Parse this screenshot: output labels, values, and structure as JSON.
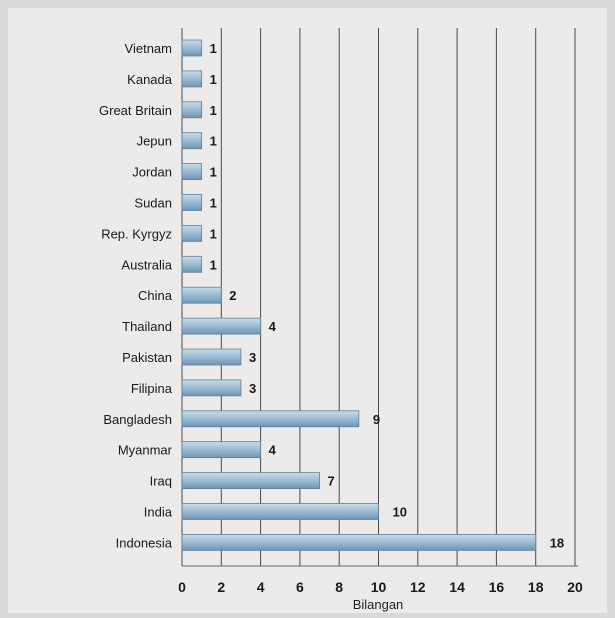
{
  "chart_data": {
    "type": "bar",
    "orientation": "horizontal",
    "title": "",
    "xlabel": "Bilangan",
    "ylabel": "",
    "xlim": [
      0,
      20
    ],
    "grid": true,
    "bar_color": "#8fb4cf",
    "categories": [
      "Vietnam",
      "Kanada",
      "Great Britain",
      "Jepun",
      "Jordan",
      "Sudan",
      "Rep. Kyrgyz",
      "Australia",
      "China",
      "Thailand",
      "Pakistan",
      "Filipina",
      "Bangladesh",
      "Myanmar",
      "Iraq",
      "India",
      "Indonesia"
    ],
    "values": [
      1,
      1,
      1,
      1,
      1,
      1,
      1,
      1,
      2,
      4,
      3,
      3,
      9,
      4,
      7,
      10,
      18
    ],
    "ticks": [
      "0",
      "2",
      "4",
      "6",
      "8",
      "10",
      "12",
      "14",
      "16",
      "18",
      "20"
    ]
  }
}
